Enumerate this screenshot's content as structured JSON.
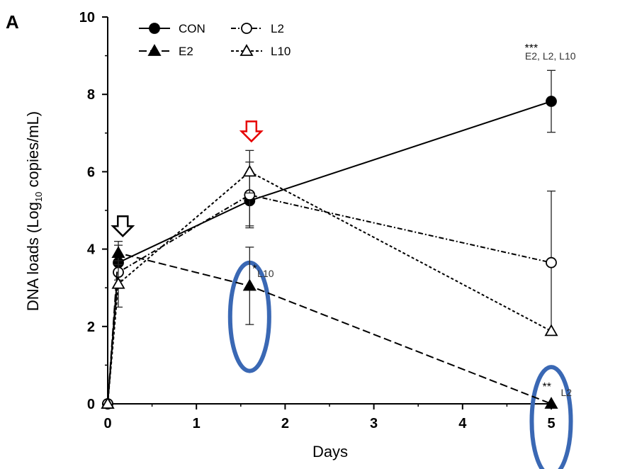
{
  "chart_data": {
    "type": "line",
    "panel_label": "A",
    "xlabel": "Days",
    "ylabel": "DNA loads (Log",
    "ylabel_sub": "10",
    "ylabel_end": " copies/mL)",
    "xlim": [
      0,
      5
    ],
    "ylim": [
      0,
      10
    ],
    "xticks": [
      "0",
      "1",
      "2",
      "3",
      "4",
      "5"
    ],
    "yticks": [
      "0",
      "2",
      "4",
      "6",
      "8",
      "10"
    ],
    "grid": false,
    "legend_position": "top-left",
    "series": [
      {
        "name": "CON",
        "marker": "filled-circle",
        "line": "solid",
        "x": [
          0,
          0.12,
          1.6,
          5
        ],
        "y": [
          0,
          3.65,
          5.25,
          7.82
        ],
        "err": [
          0,
          0.45,
          0.65,
          0.8
        ]
      },
      {
        "name": "L2",
        "marker": "open-circle",
        "line": "dash-dot",
        "x": [
          0,
          0.12,
          1.6,
          5
        ],
        "y": [
          0,
          3.4,
          5.4,
          3.65
        ],
        "err": [
          0,
          0.4,
          0.85,
          1.85
        ]
      },
      {
        "name": "E2",
        "marker": "filled-triangle",
        "line": "long-dash",
        "x": [
          0,
          0.12,
          1.6,
          5
        ],
        "y": [
          0,
          3.9,
          3.05,
          0
        ],
        "err": [
          0,
          0.3,
          1.0,
          0
        ]
      },
      {
        "name": "L10",
        "marker": "open-triangle",
        "line": "short-dash",
        "x": [
          0,
          0.12,
          1.6,
          5
        ],
        "y": [
          0,
          3.1,
          6.0,
          1.88
        ],
        "err": [
          0,
          0.6,
          0.55,
          0
        ]
      }
    ],
    "annotations": [
      {
        "text": "***",
        "x": 4.85,
        "y": 9.1
      },
      {
        "text": "E2, L2, L10",
        "x": 4.99,
        "y": 8.9,
        "small": true
      },
      {
        "text": "*",
        "x": 1.68,
        "y": 3.4
      },
      {
        "text": "L10",
        "x": 1.78,
        "y": 3.28,
        "small": true
      },
      {
        "text": "**",
        "x": 5.0,
        "y": 0.35
      },
      {
        "text": "L2",
        "x": 5.17,
        "y": 0.2,
        "small": true
      }
    ],
    "arrows": [
      {
        "color": "#000000",
        "x": 0.17,
        "y": 4.85,
        "style": "hollow-down"
      },
      {
        "color": "#e60000",
        "x": 1.62,
        "y": 7.3,
        "style": "hollow-down"
      }
    ],
    "highlight_ellipses": [
      {
        "color": "#3a68b4",
        "cx": 1.6,
        "cy": 2.25,
        "rx": 0.22,
        "ry": 1.4
      },
      {
        "color": "#3a68b4",
        "cx": 5.0,
        "cy": -0.45,
        "rx": 0.22,
        "ry": 1.4
      }
    ]
  }
}
